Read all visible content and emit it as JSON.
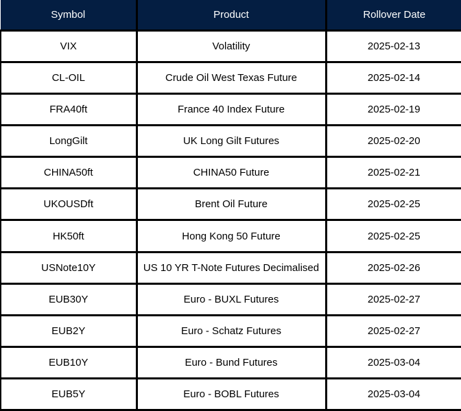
{
  "colors": {
    "header_background": "#041e42",
    "header_text": "#ffffff",
    "grid_border": "#000000",
    "row_background": "#ffffff",
    "row_text": "#000000"
  },
  "chart_data": {
    "type": "table",
    "columns": [
      "Symbol",
      "Product",
      "Rollover Date"
    ],
    "rows": [
      [
        "VIX",
        "Volatility",
        "2025-02-13"
      ],
      [
        "CL-OIL",
        "Crude Oil West Texas Future",
        "2025-02-14"
      ],
      [
        "FRA40ft",
        "France 40 Index Future",
        "2025-02-19"
      ],
      [
        "LongGilt",
        "UK Long Gilt Futures",
        "2025-02-20"
      ],
      [
        "CHINA50ft",
        "CHINA50 Future",
        "2025-02-21"
      ],
      [
        "UKOUSDft",
        "Brent Oil Future",
        "2025-02-25"
      ],
      [
        "HK50ft",
        "Hong Kong 50 Future",
        "2025-02-25"
      ],
      [
        "USNote10Y",
        "US 10 YR T-Note Futures Decimalised",
        "2025-02-26"
      ],
      [
        "EUB30Y",
        "Euro - BUXL Futures",
        "2025-02-27"
      ],
      [
        "EUB2Y",
        "Euro - Schatz Futures",
        "2025-02-27"
      ],
      [
        "EUB10Y",
        "Euro - Bund Futures",
        "2025-03-04"
      ],
      [
        "EUB5Y",
        "Euro - BOBL Futures",
        "2025-03-04"
      ]
    ]
  }
}
